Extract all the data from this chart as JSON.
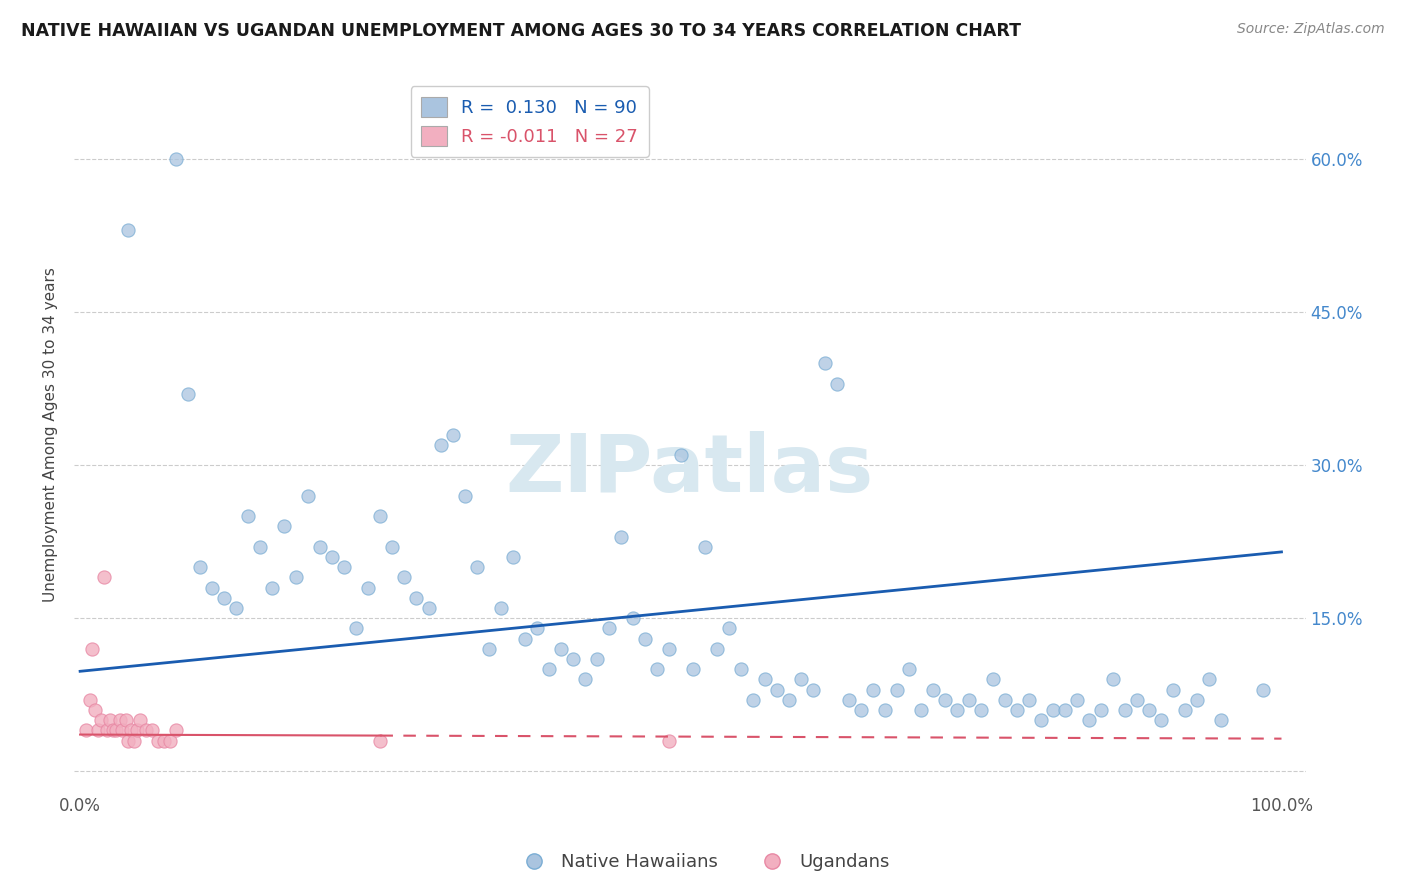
{
  "title": "NATIVE HAWAIIAN VS UGANDAN UNEMPLOYMENT AMONG AGES 30 TO 34 YEARS CORRELATION CHART",
  "source": "Source: ZipAtlas.com",
  "ylabel": "Unemployment Among Ages 30 to 34 years",
  "xlim": [
    -0.005,
    1.02
  ],
  "ylim": [
    -0.02,
    0.68
  ],
  "xtick_positions": [
    0.0,
    1.0
  ],
  "xtick_labels": [
    "0.0%",
    "100.0%"
  ],
  "ytick_positions": [
    0.0,
    0.15,
    0.3,
    0.45,
    0.6
  ],
  "ytick_labels_right": [
    "",
    "15.0%",
    "30.0%",
    "45.0%",
    "60.0%"
  ],
  "legend_R_blue": "0.130",
  "legend_N_blue": "90",
  "legend_R_pink": "-0.011",
  "legend_N_pink": "27",
  "blue_color": "#aac4df",
  "blue_edge_color": "#7aadd4",
  "pink_color": "#f2afc0",
  "pink_edge_color": "#e888a4",
  "blue_line_color": "#1a5cb0",
  "pink_line_color": "#d9536a",
  "watermark_color": "#d8e8f0",
  "blue_line_start_y": 0.098,
  "blue_line_end_y": 0.215,
  "pink_line_start_y": 0.036,
  "pink_line_end_y": 0.032,
  "blue_scatter_x": [
    0.04,
    0.08,
    0.09,
    0.1,
    0.11,
    0.12,
    0.13,
    0.14,
    0.15,
    0.16,
    0.17,
    0.18,
    0.19,
    0.2,
    0.21,
    0.22,
    0.23,
    0.24,
    0.25,
    0.26,
    0.27,
    0.28,
    0.29,
    0.3,
    0.31,
    0.32,
    0.33,
    0.34,
    0.35,
    0.36,
    0.37,
    0.38,
    0.39,
    0.4,
    0.41,
    0.42,
    0.43,
    0.44,
    0.45,
    0.46,
    0.47,
    0.48,
    0.49,
    0.5,
    0.51,
    0.52,
    0.53,
    0.54,
    0.55,
    0.56,
    0.57,
    0.58,
    0.59,
    0.6,
    0.61,
    0.62,
    0.63,
    0.64,
    0.65,
    0.66,
    0.67,
    0.68,
    0.69,
    0.7,
    0.71,
    0.72,
    0.73,
    0.74,
    0.75,
    0.76,
    0.77,
    0.78,
    0.79,
    0.8,
    0.81,
    0.82,
    0.83,
    0.84,
    0.85,
    0.86,
    0.87,
    0.88,
    0.89,
    0.9,
    0.91,
    0.92,
    0.93,
    0.94,
    0.95,
    0.985
  ],
  "blue_scatter_y": [
    0.53,
    0.6,
    0.37,
    0.2,
    0.18,
    0.17,
    0.16,
    0.25,
    0.22,
    0.18,
    0.24,
    0.19,
    0.27,
    0.22,
    0.21,
    0.2,
    0.14,
    0.18,
    0.25,
    0.22,
    0.19,
    0.17,
    0.16,
    0.32,
    0.33,
    0.27,
    0.2,
    0.12,
    0.16,
    0.21,
    0.13,
    0.14,
    0.1,
    0.12,
    0.11,
    0.09,
    0.11,
    0.14,
    0.23,
    0.15,
    0.13,
    0.1,
    0.12,
    0.31,
    0.1,
    0.22,
    0.12,
    0.14,
    0.1,
    0.07,
    0.09,
    0.08,
    0.07,
    0.09,
    0.08,
    0.4,
    0.38,
    0.07,
    0.06,
    0.08,
    0.06,
    0.08,
    0.1,
    0.06,
    0.08,
    0.07,
    0.06,
    0.07,
    0.06,
    0.09,
    0.07,
    0.06,
    0.07,
    0.05,
    0.06,
    0.06,
    0.07,
    0.05,
    0.06,
    0.09,
    0.06,
    0.07,
    0.06,
    0.05,
    0.08,
    0.06,
    0.07,
    0.09,
    0.05,
    0.08
  ],
  "pink_scatter_x": [
    0.005,
    0.008,
    0.01,
    0.012,
    0.015,
    0.017,
    0.02,
    0.022,
    0.025,
    0.027,
    0.03,
    0.033,
    0.035,
    0.038,
    0.04,
    0.042,
    0.045,
    0.047,
    0.05,
    0.055,
    0.06,
    0.065,
    0.07,
    0.075,
    0.08,
    0.25,
    0.49
  ],
  "pink_scatter_y": [
    0.04,
    0.07,
    0.12,
    0.06,
    0.04,
    0.05,
    0.19,
    0.04,
    0.05,
    0.04,
    0.04,
    0.05,
    0.04,
    0.05,
    0.03,
    0.04,
    0.03,
    0.04,
    0.05,
    0.04,
    0.04,
    0.03,
    0.03,
    0.03,
    0.04,
    0.03,
    0.03
  ]
}
